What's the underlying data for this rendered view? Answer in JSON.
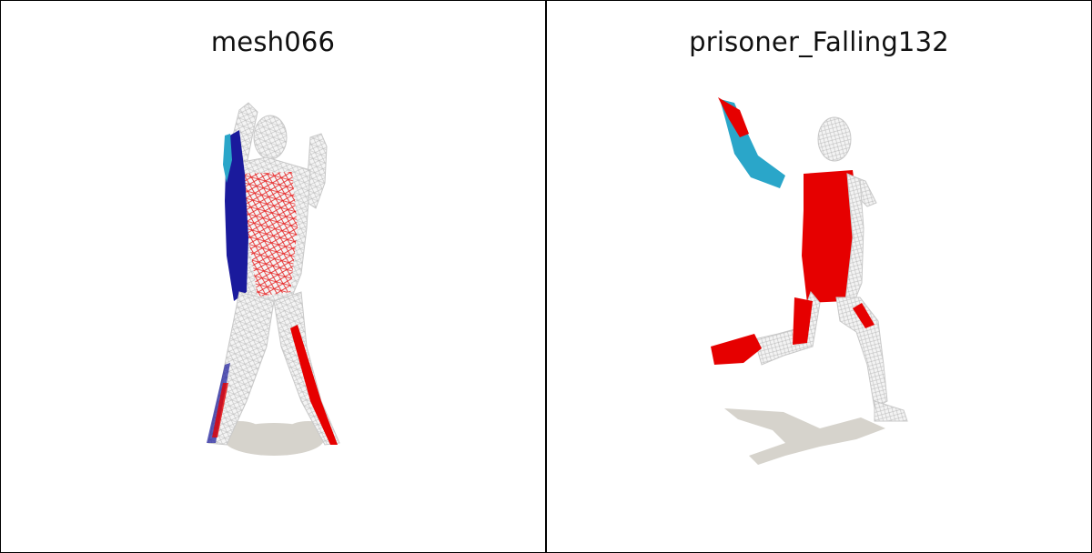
{
  "panels": [
    {
      "title": "mesh066"
    },
    {
      "title": "prisoner_Falling132"
    }
  ],
  "colors": {
    "mesh_wire": "#cfcfcf",
    "mesh_fill": "#f2f2f2",
    "highlight_red": "#e60000",
    "highlight_blue": "#1a1a9c",
    "highlight_cyan": "#2aa6c9",
    "shadow": "#d6d3cc"
  }
}
